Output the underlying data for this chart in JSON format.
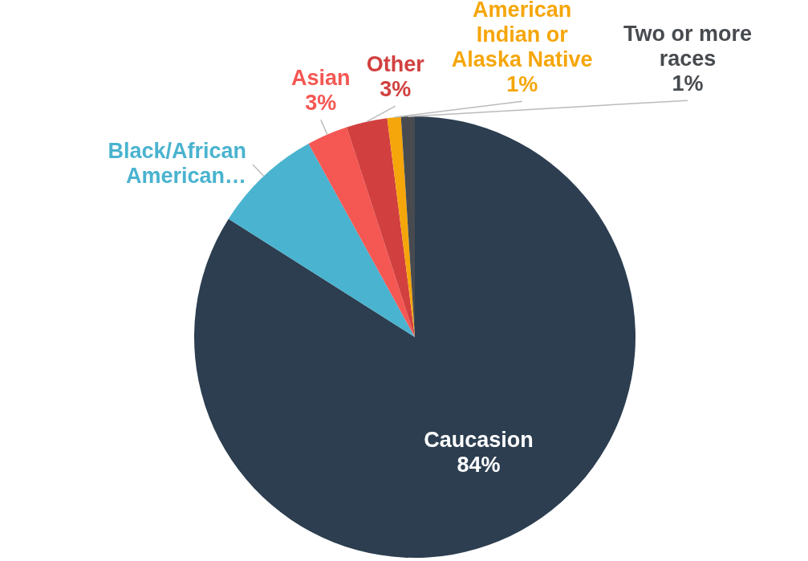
{
  "chart_data": {
    "type": "pie",
    "categories": [
      "Caucasion",
      "Black/African American…",
      "Asian",
      "Other",
      "American Indian or Alaska Native",
      "Two or more races"
    ],
    "values": [
      84,
      8,
      3,
      3,
      1,
      1
    ],
    "value_labels": [
      "84%",
      null,
      "3%",
      "3%",
      "1%",
      "1%"
    ],
    "colors": [
      "#2c3e50",
      "#4ab3cf",
      "#f55753",
      "#d1403f",
      "#f5a60a",
      "#474b4f"
    ]
  }
}
